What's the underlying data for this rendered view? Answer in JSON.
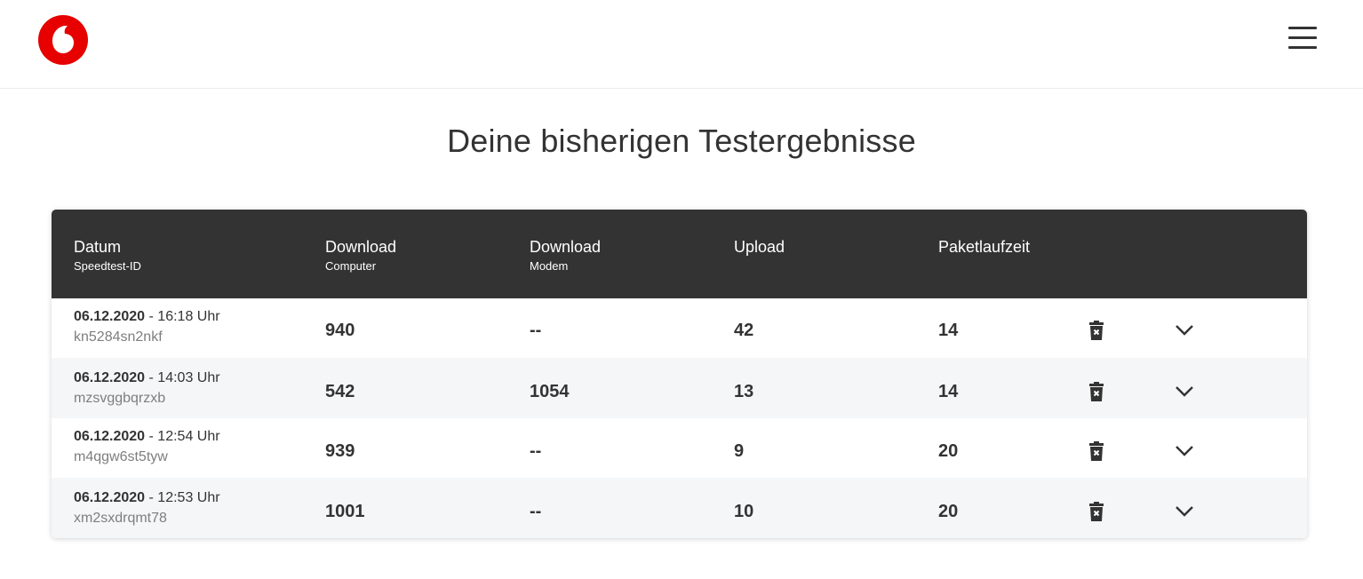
{
  "brand": {
    "name": "Vodafone",
    "logo_icon": "vodafone-speechmark-logo",
    "accent_color": "#e60000"
  },
  "header": {
    "menu_icon": "hamburger-menu-icon"
  },
  "page": {
    "title": "Deine bisherigen Testergebnisse"
  },
  "table": {
    "columns": [
      {
        "label": "Datum",
        "sub": "Speedtest-ID"
      },
      {
        "label": "Download",
        "sub": "Computer"
      },
      {
        "label": "Download",
        "sub": "Modem"
      },
      {
        "label": "Upload",
        "sub": ""
      },
      {
        "label": "Paketlaufzeit",
        "sub": ""
      }
    ],
    "rows": [
      {
        "date": "06.12.2020",
        "time": " - 16:18 Uhr",
        "id": "kn5284sn2nkf",
        "download_computer": "940",
        "download_modem": "--",
        "upload": "42",
        "latency": "14"
      },
      {
        "date": "06.12.2020",
        "time": " - 14:03 Uhr",
        "id": "mzsvggbqrzxb",
        "download_computer": "542",
        "download_modem": "1054",
        "upload": "13",
        "latency": "14"
      },
      {
        "date": "06.12.2020",
        "time": " - 12:54 Uhr",
        "id": "m4qgw6st5tyw",
        "download_computer": "939",
        "download_modem": "--",
        "upload": "9",
        "latency": "20"
      },
      {
        "date": "06.12.2020",
        "time": " - 12:53 Uhr",
        "id": "xm2sxdrqmt78",
        "download_computer": "1001",
        "download_modem": "--",
        "upload": "10",
        "latency": "20"
      }
    ],
    "row_icons": {
      "delete": "trash-icon",
      "expand": "chevron-down-icon"
    },
    "colors": {
      "header_bg": "#333333",
      "alt_row_bg": "#f4f6f8"
    }
  }
}
